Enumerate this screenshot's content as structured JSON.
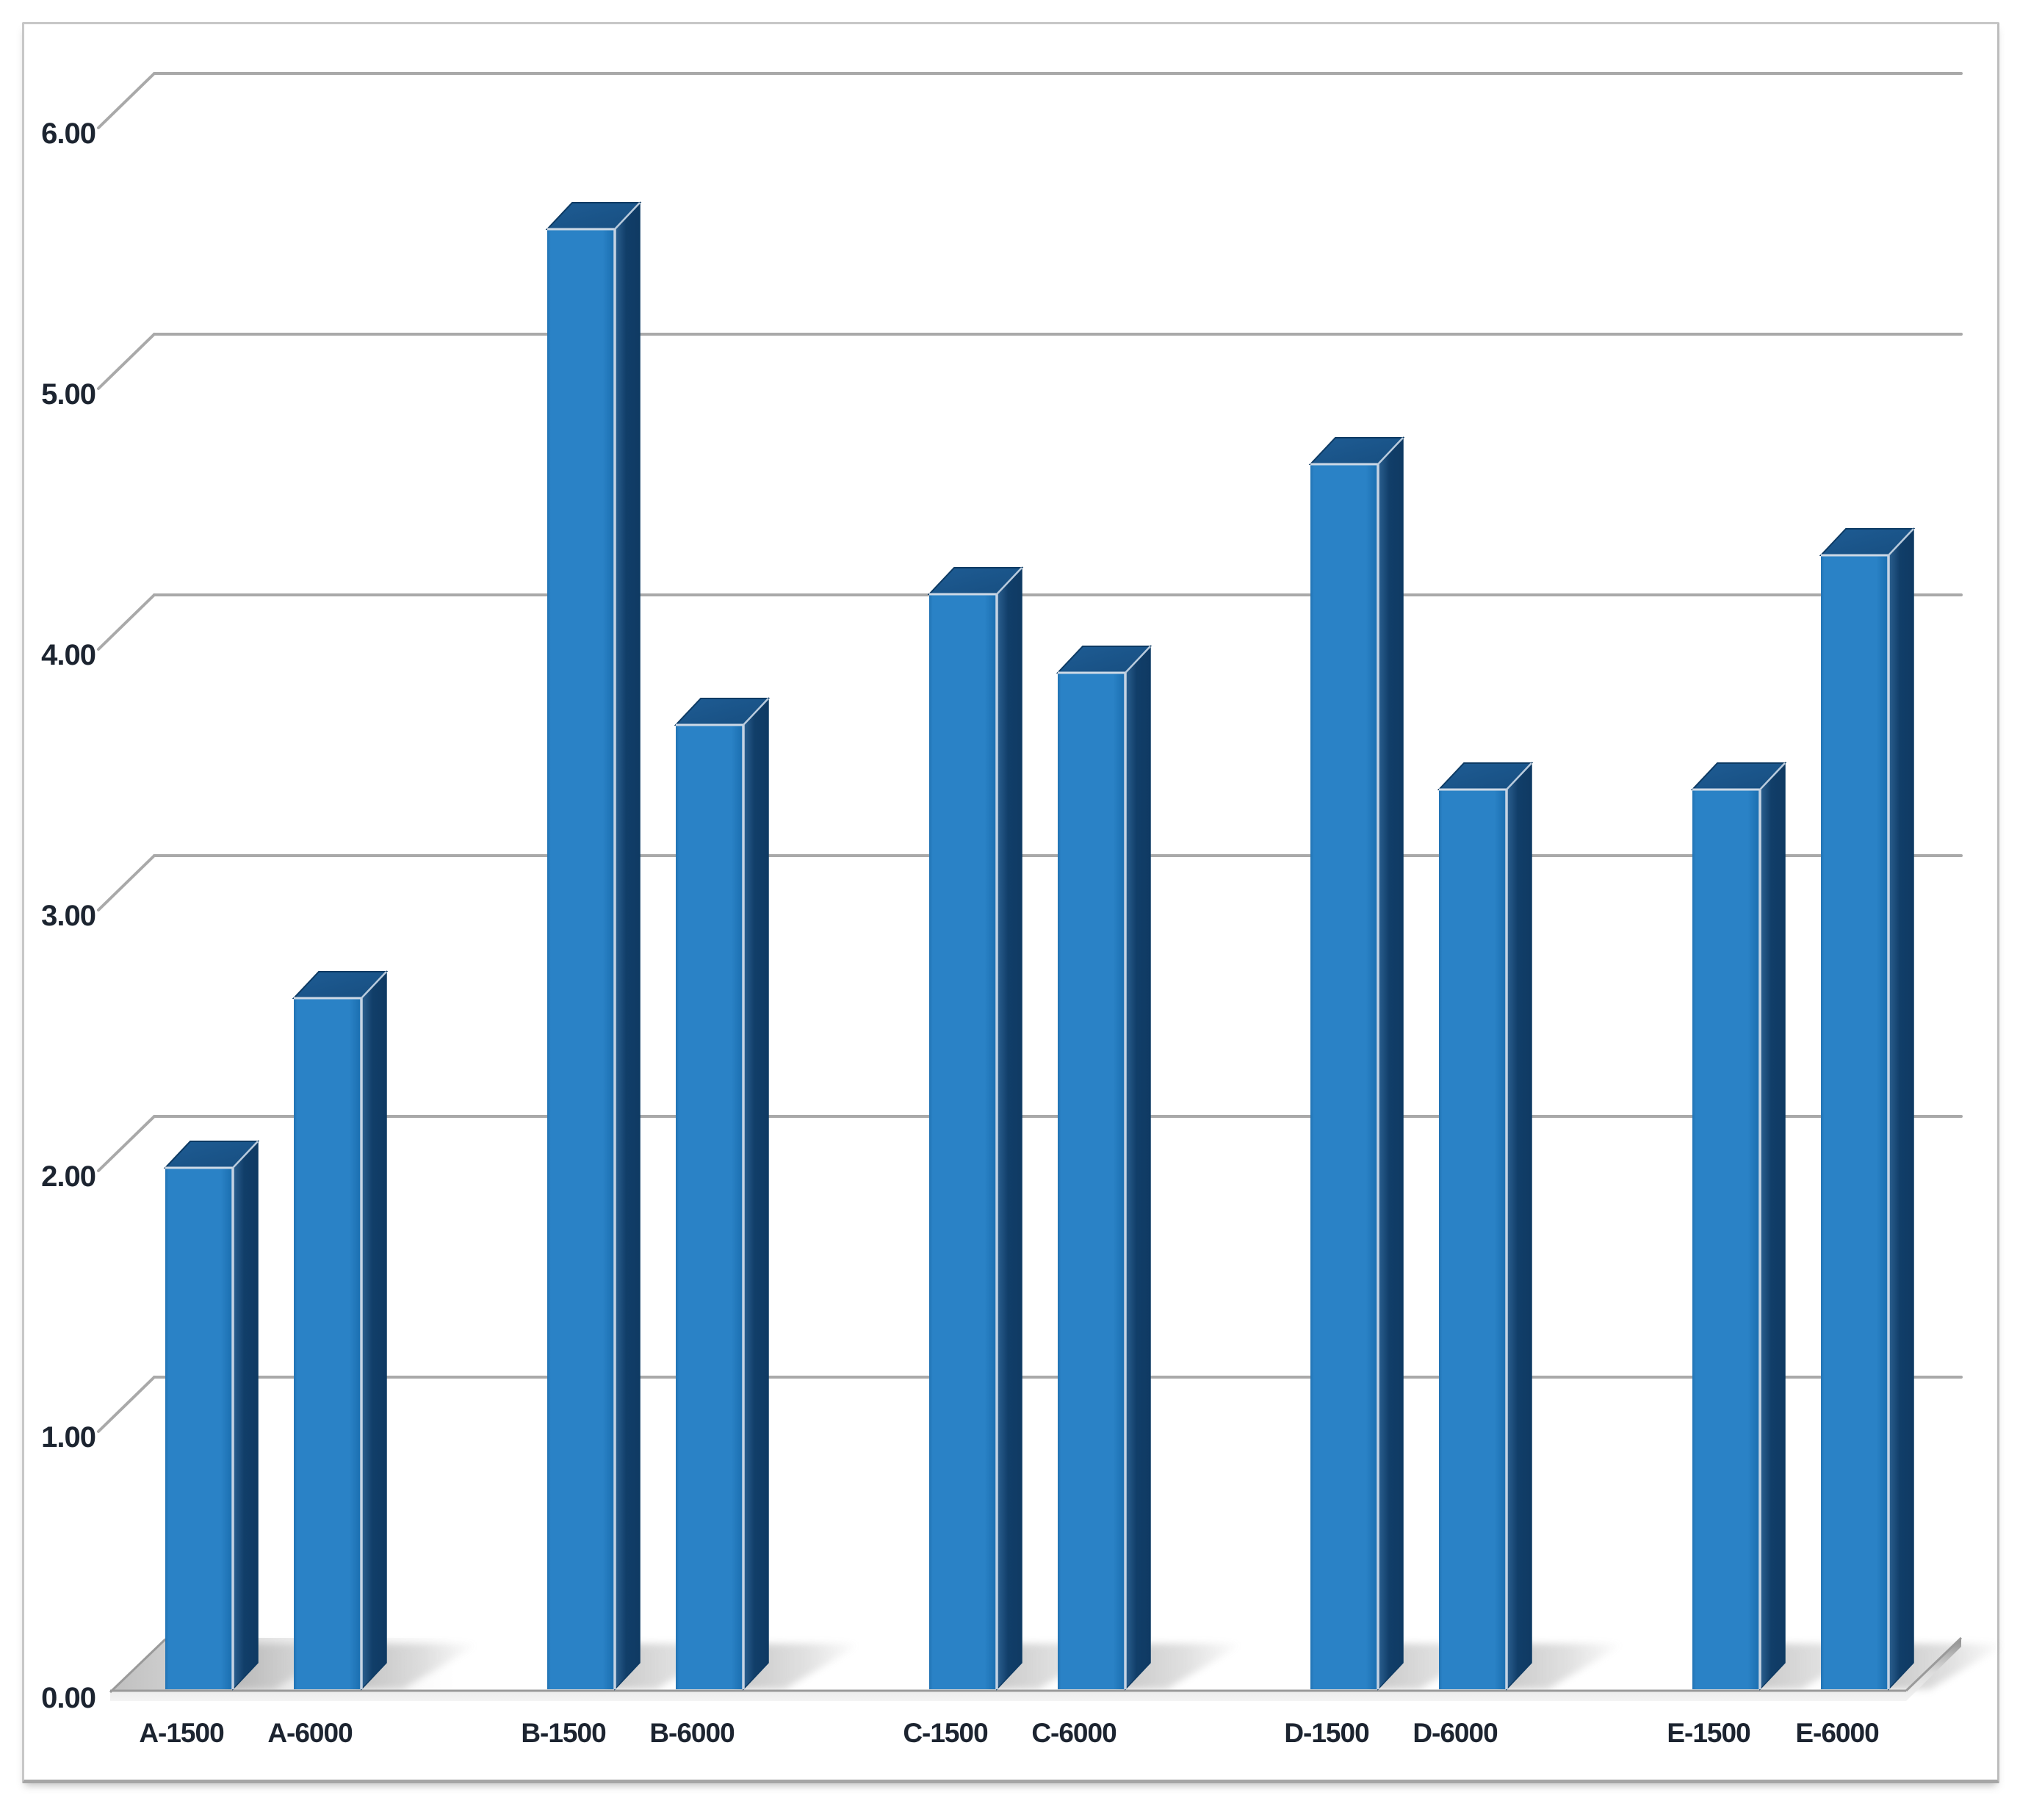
{
  "page": {
    "background_color": "#ffffff",
    "frame_border_color": "#c7c7c7",
    "title": ""
  },
  "chart_data": {
    "type": "bar",
    "style": "3d-column",
    "title": "",
    "xlabel": "",
    "ylabel": "",
    "categories": [
      "A-1500",
      "A-6000",
      "B-1500",
      "B-6000",
      "C-1500",
      "C-6000",
      "D-1500",
      "D-6000",
      "E-1500",
      "E-6000"
    ],
    "values": [
      2.0,
      2.65,
      5.6,
      3.7,
      4.2,
      3.9,
      4.7,
      3.45,
      3.45,
      4.35
    ],
    "series": [
      {
        "name": "",
        "values": [
          2.0,
          2.65,
          5.6,
          3.7,
          4.2,
          3.9,
          4.7,
          3.45,
          3.45,
          4.35
        ]
      }
    ],
    "ylim": [
      0,
      6
    ],
    "ytick_step": 1.0,
    "ytick_labels": [
      "0.00",
      "1.00",
      "2.00",
      "3.00",
      "4.00",
      "5.00",
      "6.00"
    ],
    "grid": true,
    "legend": false,
    "legend_position": "none",
    "colors": {
      "bar_front": "#2a82c6",
      "bar_front_dark_edge": "#1d72b4",
      "bar_side": "#0f3a63",
      "bar_side_light": "#2c6191",
      "bar_top": "#1e5c94",
      "bar_edge_highlight": "#cdd9e6",
      "gridline": "#a9a9a9",
      "axis_label": "#1c2430",
      "floor_front_band": "#8d8d8d",
      "floor_shadow": "#8f8f8f"
    }
  }
}
